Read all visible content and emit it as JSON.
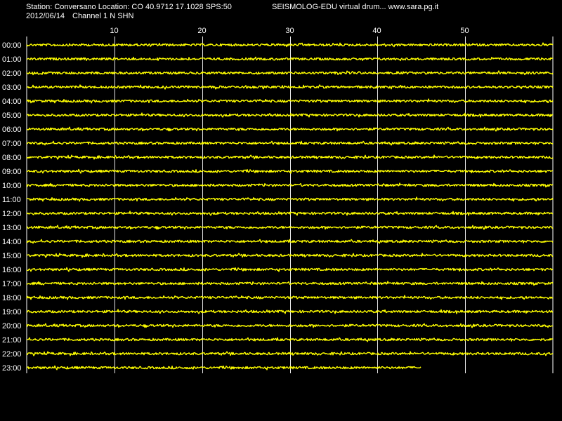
{
  "header": {
    "station_line": "Station: Conversano Location: CO 40.9712 17.1028 SPS:50",
    "software_line": "SEISMOLOG-EDU virtual drum... www.sara.pg.it",
    "date": "2012/06/14",
    "channel": "Channel 1 N SHN"
  },
  "colors": {
    "background": "#000000",
    "trace": "#ffff00",
    "grid": "#ffffff",
    "text": "#ffffff"
  },
  "chart_data": {
    "type": "line",
    "title": "",
    "xlabel": "",
    "ylabel": "",
    "xlim": [
      0,
      60
    ],
    "x_ticks": [
      10,
      20,
      30,
      40,
      50
    ],
    "grid": true,
    "hour_labels": [
      "00:00",
      "01:00",
      "02:00",
      "03:00",
      "04:00",
      "05:00",
      "06:00",
      "07:00",
      "08:00",
      "09:00",
      "10:00",
      "11:00",
      "12:00",
      "13:00",
      "14:00",
      "15:00",
      "16:00",
      "17:00",
      "18:00",
      "19:00",
      "20:00",
      "21:00",
      "22:00",
      "23:00"
    ],
    "traces": [
      {
        "hour": "00:00",
        "end_minute": 60
      },
      {
        "hour": "01:00",
        "end_minute": 60
      },
      {
        "hour": "02:00",
        "end_minute": 60
      },
      {
        "hour": "03:00",
        "end_minute": 60
      },
      {
        "hour": "04:00",
        "end_minute": 60
      },
      {
        "hour": "05:00",
        "end_minute": 60
      },
      {
        "hour": "06:00",
        "end_minute": 60
      },
      {
        "hour": "07:00",
        "end_minute": 60
      },
      {
        "hour": "08:00",
        "end_minute": 60
      },
      {
        "hour": "09:00",
        "end_minute": 60
      },
      {
        "hour": "10:00",
        "end_minute": 60
      },
      {
        "hour": "11:00",
        "end_minute": 60
      },
      {
        "hour": "12:00",
        "end_minute": 60
      },
      {
        "hour": "13:00",
        "end_minute": 60
      },
      {
        "hour": "14:00",
        "end_minute": 60
      },
      {
        "hour": "15:00",
        "end_minute": 60
      },
      {
        "hour": "16:00",
        "end_minute": 60
      },
      {
        "hour": "17:00",
        "end_minute": 60
      },
      {
        "hour": "18:00",
        "end_minute": 60
      },
      {
        "hour": "19:00",
        "end_minute": 60
      },
      {
        "hour": "20:00",
        "end_minute": 60
      },
      {
        "hour": "21:00",
        "end_minute": 60
      },
      {
        "hour": "22:00",
        "end_minute": 60
      },
      {
        "hour": "23:00",
        "end_minute": 45
      }
    ]
  }
}
